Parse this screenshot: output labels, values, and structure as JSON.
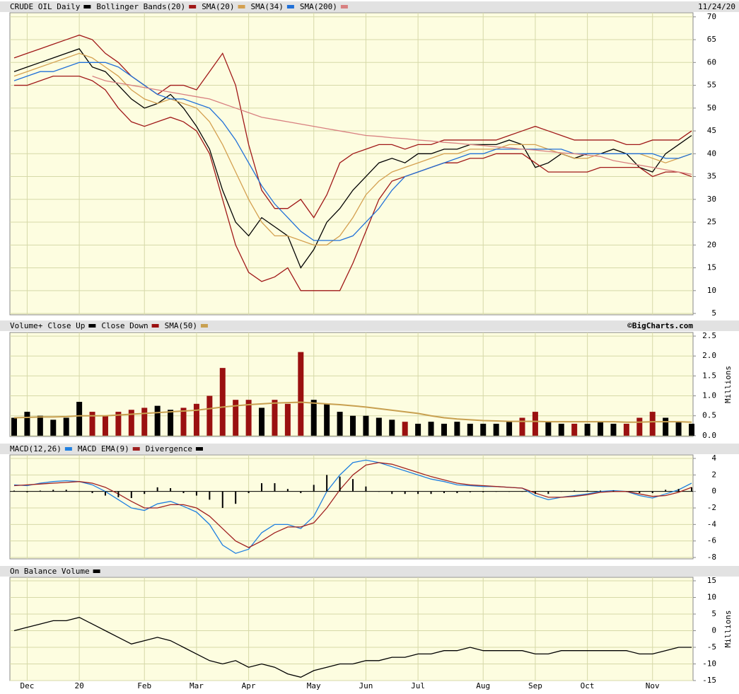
{
  "chart_data": [
    {
      "type": "line",
      "date": "11/24/20",
      "ylim": [
        4.7,
        70.9
      ],
      "yticks": [
        70,
        65,
        60,
        55,
        50,
        45,
        40,
        35,
        30,
        25,
        20,
        15,
        10,
        5
      ],
      "grid": true,
      "series": [
        {
          "name": "CRUDE OIL Daily",
          "color": "#000000",
          "values": [
            58,
            59,
            60,
            61,
            62,
            63,
            59,
            58,
            55,
            52,
            50,
            51,
            53,
            50,
            46,
            41,
            32,
            25,
            22,
            26,
            24,
            22,
            15,
            19,
            25,
            28,
            32,
            35,
            38,
            39,
            38,
            40,
            40,
            41,
            41,
            42,
            42,
            42,
            43,
            42,
            37,
            38,
            40,
            39,
            40,
            40,
            41,
            40,
            37,
            36,
            40,
            42,
            44
          ]
        },
        {
          "name": "Bollinger Bands(20)",
          "color": "#a01818",
          "values": [
            61,
            62,
            63,
            64,
            65,
            66,
            65,
            62,
            60,
            57,
            55,
            53,
            55,
            55,
            54,
            58,
            62,
            55,
            42,
            32,
            28,
            28,
            30,
            26,
            31,
            38,
            40,
            41,
            42,
            42,
            41,
            42,
            42,
            43,
            43,
            43,
            43,
            43,
            44,
            45,
            46,
            45,
            44,
            43,
            43,
            43,
            43,
            42,
            42,
            43,
            43,
            43,
            45
          ],
          "lower_values": [
            55,
            55,
            56,
            57,
            57,
            57,
            56,
            54,
            50,
            47,
            46,
            47,
            48,
            47,
            45,
            40,
            30,
            20,
            14,
            12,
            13,
            15,
            10,
            10,
            10,
            10,
            16,
            23,
            30,
            34,
            35,
            36,
            37,
            38,
            38,
            39,
            39,
            40,
            40,
            40,
            38,
            36,
            36,
            36,
            36,
            37,
            37,
            37,
            37,
            35,
            36,
            36,
            35
          ]
        },
        {
          "name": "SMA(20)",
          "color": "#d4a050",
          "values": [
            57,
            58,
            59,
            60,
            61,
            62,
            61,
            59,
            57,
            54,
            52,
            51,
            52,
            51,
            50,
            47,
            42,
            36,
            30,
            25,
            22,
            22,
            21,
            20,
            20,
            22,
            26,
            31,
            34,
            36,
            37,
            38,
            39,
            40,
            40,
            41,
            41,
            41,
            42,
            42,
            42,
            41,
            40,
            39,
            39,
            40,
            40,
            40,
            40,
            39,
            38,
            39,
            40
          ]
        },
        {
          "name": "SMA(34)",
          "color": "#2070d8",
          "values": [
            56,
            57,
            58,
            58,
            59,
            60,
            60,
            60,
            59,
            57,
            55,
            53,
            52,
            52,
            51,
            50,
            47,
            43,
            38,
            33,
            29,
            26,
            23,
            21,
            21,
            21,
            22,
            25,
            28,
            32,
            35,
            36,
            37,
            38,
            39,
            40,
            40,
            41,
            41,
            41,
            41,
            41,
            41,
            40,
            40,
            40,
            40,
            40,
            40,
            40,
            39,
            39,
            40
          ]
        },
        {
          "name": "SMA(200)",
          "color": "#d88080",
          "values": [
            null,
            null,
            null,
            null,
            null,
            null,
            57,
            56,
            55.5,
            55,
            54.5,
            54,
            53.5,
            53,
            52.5,
            52,
            51,
            50,
            49,
            48,
            47.5,
            47,
            46.5,
            46,
            45.5,
            45,
            44.5,
            44,
            43.8,
            43.5,
            43.3,
            43,
            42.8,
            42.5,
            42.3,
            42,
            41.8,
            41.5,
            41.3,
            41,
            40.8,
            40.5,
            40.2,
            40,
            39.7,
            39.4,
            38.5,
            38,
            37.5,
            37,
            36.5,
            36,
            35.5
          ]
        }
      ]
    },
    {
      "type": "bar",
      "title": "Volume+",
      "credit": "©BigCharts.com",
      "ylabel": "Millions",
      "ylim": [
        -0.02,
        2.59
      ],
      "yticks": [
        {
          "value": 0,
          "label": "0.0"
        },
        0.5,
        {
          "value": 1,
          "label": "1.0"
        },
        1.5,
        {
          "value": 2,
          "label": "2.0"
        },
        2.5
      ],
      "grid": true,
      "series": [
        {
          "name": "Close Up",
          "color": "#000000",
          "values": [
            0.45,
            0.6,
            0.5,
            0.4,
            0.45,
            0.85,
            null,
            null,
            null,
            null,
            null,
            0.75,
            0.65,
            null,
            null,
            null,
            null,
            null,
            null,
            0.7,
            null,
            null,
            null,
            0.9,
            0.8,
            0.6,
            0.5,
            0.5,
            0.45,
            0.4,
            null,
            0.3,
            0.35,
            0.3,
            0.35,
            0.3,
            0.3,
            0.3,
            0.35,
            null,
            null,
            0.35,
            0.3,
            null,
            0.3,
            0.35,
            0.3,
            null,
            null,
            null,
            0.45,
            0.35,
            0.3
          ]
        },
        {
          "name": "Close Down",
          "color": "#9a1010",
          "values": [
            null,
            null,
            null,
            null,
            null,
            null,
            0.6,
            0.5,
            0.6,
            0.65,
            0.7,
            null,
            null,
            0.7,
            0.8,
            1.0,
            1.7,
            0.9,
            0.9,
            null,
            0.9,
            0.8,
            2.1,
            null,
            null,
            null,
            null,
            null,
            null,
            null,
            0.35,
            null,
            null,
            null,
            null,
            null,
            null,
            null,
            null,
            0.45,
            0.6,
            null,
            null,
            0.3,
            null,
            null,
            null,
            0.3,
            0.45,
            0.6,
            null,
            null,
            null
          ]
        },
        {
          "name": "SMA(50)",
          "color": "#c8a050",
          "type": "line",
          "values": [
            0.45,
            0.46,
            0.47,
            0.47,
            0.48,
            0.5,
            0.5,
            0.5,
            0.52,
            0.54,
            0.56,
            0.58,
            0.6,
            0.62,
            0.64,
            0.68,
            0.72,
            0.75,
            0.78,
            0.8,
            0.82,
            0.83,
            0.84,
            0.82,
            0.8,
            0.78,
            0.75,
            0.72,
            0.68,
            0.64,
            0.6,
            0.56,
            0.5,
            0.45,
            0.42,
            0.4,
            0.38,
            0.37,
            0.36,
            0.36,
            0.36,
            0.35,
            0.35,
            0.35,
            0.35,
            0.35,
            0.35,
            0.34,
            0.34,
            0.35,
            0.35,
            0.35,
            0.34
          ]
        }
      ]
    },
    {
      "type": "line",
      "ylim": [
        -8.17,
        4.43
      ],
      "yticks": [
        4,
        2,
        0,
        -2,
        -4,
        -6,
        -8
      ],
      "grid": true,
      "series": [
        {
          "name": "MACD(12,26)",
          "color": "#2080e0",
          "values": [
            0.8,
            0.7,
            1,
            1.2,
            1.3,
            1.2,
            0.8,
            0,
            -1,
            -2,
            -2.3,
            -1.5,
            -1.2,
            -1.8,
            -2.5,
            -4,
            -6.5,
            -7.5,
            -7,
            -5,
            -4,
            -4,
            -4.5,
            -3,
            0,
            2,
            3.5,
            3.8,
            3.5,
            3,
            2.5,
            2,
            1.5,
            1.2,
            0.8,
            0.7,
            0.6,
            0.6,
            0.5,
            0.4,
            -0.5,
            -1,
            -0.7,
            -0.5,
            -0.3,
            0,
            0.1,
            0,
            -0.5,
            -0.8,
            -0.3,
            0.2,
            1
          ]
        },
        {
          "name": "MACD EMA(9)",
          "color": "#a02020",
          "values": [
            0.7,
            0.8,
            0.9,
            1,
            1.1,
            1.2,
            1,
            0.5,
            -0.3,
            -1.2,
            -2,
            -2,
            -1.6,
            -1.6,
            -2,
            -3,
            -4.5,
            -6,
            -6.8,
            -6,
            -5,
            -4.3,
            -4.3,
            -3.8,
            -2,
            0.2,
            2,
            3.2,
            3.5,
            3.3,
            2.8,
            2.3,
            1.8,
            1.4,
            1,
            0.8,
            0.7,
            0.6,
            0.5,
            0.4,
            -0.2,
            -0.7,
            -0.7,
            -0.6,
            -0.4,
            -0.1,
            0,
            0,
            -0.3,
            -0.6,
            -0.5,
            -0.1,
            0.5
          ]
        },
        {
          "name": "Divergence",
          "color": "#000000",
          "type": "bar",
          "values": [
            0.1,
            -0.1,
            0.1,
            0.2,
            0.2,
            0,
            -0.2,
            -0.5,
            -0.7,
            -0.8,
            -0.3,
            0.5,
            0.4,
            -0.2,
            -0.5,
            -1,
            -2,
            -1.5,
            -0.2,
            1,
            1,
            0.3,
            -0.2,
            0.8,
            2,
            1.8,
            1.5,
            0.6,
            0,
            -0.3,
            -0.3,
            -0.3,
            -0.3,
            -0.2,
            -0.2,
            -0.1,
            -0.1,
            0,
            0,
            0,
            -0.3,
            -0.3,
            0,
            0.1,
            0.1,
            0.1,
            0.1,
            0,
            -0.2,
            -0.2,
            0.2,
            0.3,
            0.5
          ]
        }
      ]
    },
    {
      "type": "line",
      "ylabel": "Millions",
      "ylim": [
        -15,
        16.06
      ],
      "yticks": [
        15,
        10,
        5,
        0,
        -5,
        -10,
        -15
      ],
      "grid": true,
      "categories": [
        null,
        "Dec",
        null,
        null,
        null,
        "20",
        null,
        null,
        null,
        null,
        "Feb",
        null,
        null,
        null,
        "Mar",
        null,
        null,
        null,
        "Apr",
        null,
        null,
        null,
        null,
        "May",
        null,
        null,
        null,
        "Jun",
        null,
        null,
        null,
        "Jul",
        null,
        null,
        null,
        null,
        "Aug",
        null,
        null,
        null,
        "Sep",
        null,
        null,
        null,
        "Oct",
        null,
        null,
        null,
        null,
        "Nov",
        null,
        null,
        null
      ],
      "series": [
        {
          "name": "On Balance Volume",
          "color": "#000000",
          "values": [
            0,
            1,
            2,
            3,
            3,
            4,
            2,
            0,
            -2,
            -4,
            -3,
            -2,
            -3,
            -5,
            -7,
            -9,
            -10,
            -9,
            -11,
            -10,
            -11,
            -13,
            -14,
            -12,
            -11,
            -10,
            -10,
            -9,
            -9,
            -8,
            -8,
            -7,
            -7,
            -6,
            -6,
            -5,
            -6,
            -6,
            -6,
            -6,
            -7,
            -7,
            -6,
            -6,
            -6,
            -6,
            -6,
            -6,
            -7,
            -7,
            -6,
            -5,
            -5
          ]
        }
      ]
    }
  ]
}
